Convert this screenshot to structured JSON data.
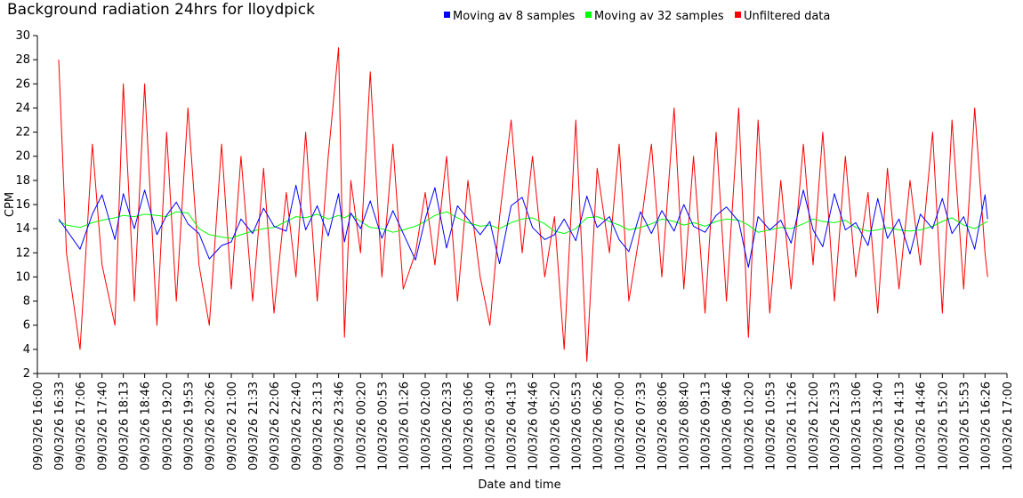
{
  "chart_data": {
    "type": "line",
    "title": "Background radiation 24hrs for lloydpick",
    "xlabel": "Date and time",
    "ylabel": "CPM",
    "ylim": [
      2,
      30
    ],
    "yticks": [
      2,
      4,
      6,
      8,
      10,
      12,
      14,
      16,
      18,
      20,
      22,
      24,
      26,
      28,
      30
    ],
    "xlim": [
      "09/03/26 16:00",
      "10/03/26 17:00"
    ],
    "x_tick_labels": [
      "09/03/26 16:00",
      "09/03/26 16:33",
      "09/03/26 17:06",
      "09/03/26 17:40",
      "09/03/26 18:13",
      "09/03/26 18:46",
      "09/03/26 19:20",
      "09/03/26 19:53",
      "09/03/26 20:26",
      "09/03/26 21:00",
      "09/03/26 21:33",
      "09/03/26 22:06",
      "09/03/26 22:40",
      "09/03/26 23:13",
      "09/03/26 23:46",
      "10/03/26 00:20",
      "10/03/26 00:53",
      "10/03/26 01:26",
      "10/03/26 02:00",
      "10/03/26 02:33",
      "10/03/26 03:06",
      "10/03/26 03:40",
      "10/03/26 04:13",
      "10/03/26 04:46",
      "10/03/26 05:20",
      "10/03/26 05:53",
      "10/03/26 06:26",
      "10/03/26 07:00",
      "10/03/26 07:33",
      "10/03/26 08:06",
      "10/03/26 08:40",
      "10/03/26 09:13",
      "10/03/26 09:46",
      "10/03/26 10:20",
      "10/03/26 10:53",
      "10/03/26 11:26",
      "10/03/26 12:00",
      "10/03/26 12:33",
      "10/03/26 13:06",
      "10/03/26 13:40",
      "10/03/26 14:13",
      "10/03/26 14:46",
      "10/03/26 15:20",
      "10/03/26 15:53",
      "10/03/26 16:26",
      "10/03/26 17:00"
    ],
    "x": [
      "09/03/26 16:33",
      "09/03/26 16:45",
      "09/03/26 17:06",
      "09/03/26 17:25",
      "09/03/26 17:40",
      "09/03/26 18:00",
      "09/03/26 18:13",
      "09/03/26 18:30",
      "09/03/26 18:46",
      "09/03/26 19:05",
      "09/03/26 19:20",
      "09/03/26 19:35",
      "09/03/26 19:53",
      "09/03/26 20:10",
      "09/03/26 20:26",
      "09/03/26 20:45",
      "09/03/26 21:00",
      "09/03/26 21:15",
      "09/03/26 21:33",
      "09/03/26 21:50",
      "09/03/26 22:06",
      "09/03/26 22:25",
      "09/03/26 22:40",
      "09/03/26 22:55",
      "09/03/26 23:13",
      "09/03/26 23:30",
      "09/03/26 23:46",
      "09/03/26 23:55",
      "10/03/26 00:05",
      "10/03/26 00:20",
      "10/03/26 00:35",
      "10/03/26 00:53",
      "10/03/26 01:10",
      "10/03/26 01:26",
      "10/03/26 01:45",
      "10/03/26 02:00",
      "10/03/26 02:15",
      "10/03/26 02:33",
      "10/03/26 02:50",
      "10/03/26 03:06",
      "10/03/26 03:25",
      "10/03/26 03:40",
      "10/03/26 03:55",
      "10/03/26 04:13",
      "10/03/26 04:30",
      "10/03/26 04:46",
      "10/03/26 05:05",
      "10/03/26 05:20",
      "10/03/26 05:35",
      "10/03/26 05:53",
      "10/03/26 06:10",
      "10/03/26 06:26",
      "10/03/26 06:45",
      "10/03/26 07:00",
      "10/03/26 07:15",
      "10/03/26 07:33",
      "10/03/26 07:50",
      "10/03/26 08:06",
      "10/03/26 08:25",
      "10/03/26 08:40",
      "10/03/26 08:55",
      "10/03/26 09:13",
      "10/03/26 09:30",
      "10/03/26 09:46",
      "10/03/26 10:05",
      "10/03/26 10:20",
      "10/03/26 10:35",
      "10/03/26 10:53",
      "10/03/26 11:10",
      "10/03/26 11:26",
      "10/03/26 11:45",
      "10/03/26 12:00",
      "10/03/26 12:15",
      "10/03/26 12:33",
      "10/03/26 12:50",
      "10/03/26 13:06",
      "10/03/26 13:25",
      "10/03/26 13:40",
      "10/03/26 13:55",
      "10/03/26 14:13",
      "10/03/26 14:30",
      "10/03/26 14:46",
      "10/03/26 15:05",
      "10/03/26 15:20",
      "10/03/26 15:35",
      "10/03/26 15:53",
      "10/03/26 16:10",
      "10/03/26 16:26",
      "10/03/26 16:30"
    ],
    "series": [
      {
        "name": "Moving av 8 samples",
        "color": "#0000ff",
        "values": [
          14.8,
          13.9,
          12.3,
          15.2,
          16.8,
          13.1,
          16.9,
          14.0,
          17.2,
          13.5,
          15.1,
          16.2,
          14.4,
          13.6,
          11.5,
          12.6,
          12.9,
          14.8,
          13.6,
          15.7,
          14.2,
          13.8,
          17.6,
          13.9,
          15.9,
          13.4,
          16.9,
          12.9,
          15.3,
          14.0,
          16.3,
          13.2,
          15.5,
          13.6,
          11.4,
          14.8,
          17.4,
          12.4,
          15.9,
          14.8,
          13.5,
          14.6,
          11.1,
          15.9,
          16.6,
          14.1,
          13.1,
          13.5,
          14.8,
          13.0,
          16.7,
          14.1,
          15.0,
          13.1,
          12.1,
          15.4,
          13.6,
          15.5,
          13.8,
          16.0,
          14.2,
          13.7,
          15.1,
          15.8,
          14.6,
          10.8,
          15.0,
          13.9,
          14.7,
          12.8,
          17.2,
          13.9,
          12.5,
          16.9,
          13.9,
          14.5,
          12.6,
          16.5,
          13.2,
          14.8,
          11.9,
          15.2,
          14.0,
          16.5,
          13.6,
          15.0,
          12.3,
          16.8,
          14.8
        ]
      },
      {
        "name": "Moving av 32 samples",
        "color": "#00ff00",
        "values": [
          14.6,
          14.3,
          14.1,
          14.5,
          14.7,
          14.9,
          15.1,
          15.0,
          15.2,
          15.1,
          15.0,
          15.4,
          15.3,
          14.0,
          13.5,
          13.3,
          13.2,
          13.5,
          13.8,
          14.0,
          14.1,
          14.6,
          15.0,
          14.9,
          15.2,
          14.8,
          15.1,
          14.9,
          15.2,
          14.6,
          14.1,
          14.0,
          13.7,
          13.9,
          14.2,
          14.6,
          15.1,
          15.4,
          14.9,
          14.5,
          14.2,
          14.3,
          14.0,
          14.5,
          14.8,
          14.9,
          14.4,
          13.8,
          13.6,
          14.0,
          14.9,
          15.0,
          14.6,
          14.3,
          13.9,
          14.1,
          14.4,
          14.8,
          14.6,
          14.3,
          14.5,
          14.2,
          14.6,
          14.8,
          14.7,
          14.3,
          13.7,
          13.9,
          14.1,
          14.0,
          14.4,
          14.8,
          14.6,
          14.5,
          14.7,
          14.1,
          13.8,
          13.9,
          14.1,
          13.9,
          13.8,
          13.9,
          14.2,
          14.6,
          14.9,
          14.3,
          14.0,
          14.5,
          14.6
        ]
      },
      {
        "name": "Unfiltered data",
        "color": "#ff0000",
        "values": [
          28,
          12,
          4,
          21,
          11,
          6,
          26,
          8,
          26,
          6,
          22,
          8,
          24,
          11,
          6,
          21,
          9,
          20,
          8,
          19,
          7,
          17,
          10,
          22,
          8,
          20,
          29,
          5,
          18,
          12,
          27,
          10,
          21,
          9,
          12,
          17,
          11,
          20,
          8,
          18,
          10,
          6,
          15,
          23,
          12,
          20,
          10,
          15,
          4,
          23,
          3,
          19,
          12,
          21,
          8,
          14,
          21,
          10,
          24,
          9,
          20,
          7,
          22,
          8,
          24,
          5,
          23,
          7,
          18,
          9,
          21,
          11,
          22,
          8,
          20,
          10,
          17,
          7,
          19,
          9,
          18,
          11,
          22,
          7,
          23,
          9,
          24,
          12,
          10
        ]
      }
    ]
  }
}
